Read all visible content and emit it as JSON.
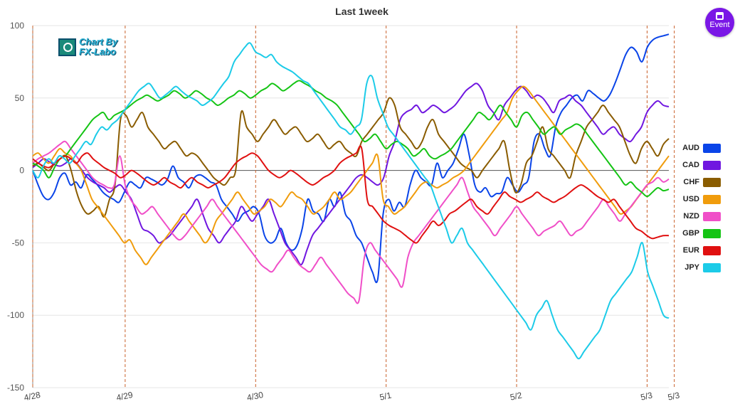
{
  "title": "Last 1week",
  "event_button": {
    "label": "Event",
    "icon": "calendar-icon",
    "color": "#7a17e6"
  },
  "logo": {
    "line1": "Chart By",
    "line2": "FX-Labo"
  },
  "chart_data": {
    "type": "line",
    "title": "Last 1week",
    "ylim": [
      -150,
      100
    ],
    "yticks": [
      100,
      50,
      0,
      -50,
      -100,
      -150
    ],
    "xlim": [
      0,
      117
    ],
    "xticks": [
      {
        "x": 0,
        "label": "4/28"
      },
      {
        "x": 17,
        "label": "4/29"
      },
      {
        "x": 41,
        "label": "4/30"
      },
      {
        "x": 65,
        "label": "5/1"
      },
      {
        "x": 89,
        "label": "5/2"
      },
      {
        "x": 113,
        "label": "5/3"
      },
      {
        "x": 118,
        "label": "5/3"
      }
    ],
    "grid": true,
    "legend": "right",
    "series": [
      {
        "name": "AUD",
        "color": "#0a44e8",
        "values": [
          0,
          -10,
          -18,
          -20,
          -15,
          -5,
          -2,
          -10,
          -8,
          -12,
          -3,
          -6,
          -10,
          -15,
          -18,
          -20,
          -22,
          -15,
          -8,
          -10,
          -12,
          -5,
          -6,
          -8,
          -10,
          -6,
          3,
          -5,
          -8,
          -12,
          -5,
          -3,
          -5,
          -8,
          -10,
          -20,
          -25,
          -30,
          -35,
          -30,
          -28,
          -25,
          -30,
          -45,
          -50,
          -48,
          -40,
          -50,
          -55,
          -52,
          -40,
          -20,
          -28,
          -30,
          -35,
          -20,
          -25,
          -15,
          -30,
          -35,
          -45,
          -50,
          -60,
          -70,
          -75,
          -30,
          -20,
          -28,
          -22,
          -25,
          -10,
          0,
          -5,
          -8,
          -10,
          5,
          -5,
          0,
          5,
          15,
          25,
          10,
          -10,
          -15,
          -12,
          -18,
          -16,
          -15,
          -5,
          -10,
          -15,
          -10,
          -5,
          20,
          25,
          15,
          10,
          30,
          40,
          45,
          50,
          52,
          48,
          55,
          53,
          50,
          48,
          52,
          60,
          70,
          80,
          85,
          82,
          75,
          85,
          90,
          92,
          93,
          94
        ]
      },
      {
        "name": "CAD",
        "color": "#7017e0",
        "values": [
          2,
          5,
          8,
          6,
          4,
          3,
          5,
          8,
          5,
          0,
          -5,
          -8,
          -10,
          -12,
          -15,
          -12,
          -10,
          -15,
          -20,
          -30,
          -40,
          -42,
          -45,
          -50,
          -48,
          -45,
          -40,
          -35,
          -30,
          -25,
          -20,
          -30,
          -40,
          -45,
          -50,
          -45,
          -40,
          -35,
          -25,
          -30,
          -35,
          -30,
          -25,
          -20,
          -30,
          -40,
          -50,
          -55,
          -60,
          -65,
          -55,
          -45,
          -40,
          -35,
          -30,
          -25,
          -20,
          -15,
          -10,
          -5,
          -3,
          -5,
          -8,
          -10,
          -5,
          10,
          20,
          35,
          40,
          42,
          45,
          40,
          42,
          45,
          43,
          40,
          42,
          45,
          50,
          55,
          58,
          60,
          55,
          45,
          40,
          35,
          45,
          50,
          55,
          58,
          55,
          50,
          52,
          50,
          45,
          40,
          48,
          50,
          52,
          48,
          45,
          40,
          35,
          30,
          25,
          28,
          30,
          25,
          22,
          20,
          25,
          30,
          40,
          45,
          48,
          45,
          44
        ]
      },
      {
        "name": "CHF",
        "color": "#8a5c00",
        "values": [
          3,
          5,
          2,
          0,
          5,
          8,
          10,
          0,
          -15,
          -25,
          -30,
          -28,
          -25,
          -32,
          -20,
          -10,
          35,
          38,
          30,
          35,
          40,
          30,
          25,
          20,
          15,
          18,
          20,
          15,
          10,
          12,
          10,
          5,
          0,
          -5,
          -8,
          -10,
          -5,
          0,
          40,
          30,
          25,
          20,
          25,
          30,
          35,
          30,
          25,
          28,
          30,
          25,
          20,
          22,
          25,
          20,
          15,
          18,
          20,
          15,
          12,
          10,
          20,
          25,
          30,
          35,
          40,
          50,
          45,
          30,
          25,
          20,
          15,
          20,
          30,
          35,
          25,
          20,
          15,
          10,
          5,
          2,
          0,
          -5,
          0,
          5,
          10,
          15,
          20,
          0,
          -15,
          -10,
          5,
          10,
          20,
          30,
          15,
          10,
          5,
          0,
          -5,
          10,
          20,
          30,
          35,
          40,
          45,
          40,
          35,
          30,
          20,
          10,
          5,
          15,
          20,
          15,
          10,
          18,
          22
        ]
      },
      {
        "name": "USD",
        "color": "#f09c0c",
        "values": [
          10,
          12,
          8,
          5,
          10,
          15,
          12,
          10,
          5,
          0,
          -10,
          -20,
          -25,
          -30,
          -35,
          -40,
          -45,
          -50,
          -48,
          -55,
          -60,
          -65,
          -60,
          -55,
          -50,
          -45,
          -40,
          -35,
          -30,
          -35,
          -40,
          -45,
          -50,
          -45,
          -35,
          -30,
          -25,
          -20,
          -15,
          -20,
          -25,
          -30,
          -28,
          -25,
          -20,
          -22,
          -25,
          -20,
          -15,
          -18,
          -20,
          -25,
          -30,
          -28,
          -25,
          -20,
          -15,
          -20,
          -18,
          -15,
          -10,
          -5,
          0,
          5,
          10,
          -20,
          -25,
          -30,
          -28,
          -25,
          -20,
          -15,
          -10,
          -8,
          -10,
          -12,
          -10,
          -8,
          -5,
          -3,
          0,
          5,
          10,
          15,
          20,
          25,
          30,
          35,
          40,
          50,
          55,
          58,
          55,
          50,
          45,
          40,
          35,
          30,
          25,
          20,
          15,
          10,
          5,
          0,
          -5,
          -10,
          -15,
          -20,
          -25,
          -30,
          -28,
          -25,
          -20,
          -15,
          -10,
          -5,
          0,
          5,
          10
        ]
      },
      {
        "name": "NZD",
        "color": "#f04fc8",
        "values": [
          5,
          8,
          10,
          12,
          15,
          18,
          20,
          15,
          10,
          5,
          0,
          -5,
          -8,
          -10,
          -12,
          -10,
          10,
          -10,
          -20,
          -25,
          -30,
          -28,
          -25,
          -30,
          -35,
          -40,
          -45,
          -48,
          -45,
          -40,
          -35,
          -30,
          -25,
          -20,
          -25,
          -30,
          -35,
          -40,
          -45,
          -50,
          -55,
          -60,
          -65,
          -68,
          -70,
          -65,
          -60,
          -55,
          -60,
          -65,
          -68,
          -70,
          -65,
          -60,
          -65,
          -70,
          -75,
          -80,
          -85,
          -88,
          -90,
          -60,
          -50,
          -55,
          -60,
          -65,
          -70,
          -75,
          -80,
          -60,
          -50,
          -45,
          -40,
          -35,
          -30,
          -25,
          -20,
          -15,
          -10,
          -5,
          -15,
          -25,
          -30,
          -35,
          -40,
          -45,
          -40,
          -35,
          -30,
          -25,
          -30,
          -35,
          -40,
          -45,
          -42,
          -40,
          -38,
          -35,
          -40,
          -45,
          -42,
          -40,
          -35,
          -30,
          -25,
          -20,
          -25,
          -30,
          -35,
          -30,
          -25,
          -20,
          -15,
          -10,
          -8,
          -5,
          -8,
          -6
        ]
      },
      {
        "name": "GBP",
        "color": "#14c414",
        "values": [
          5,
          3,
          0,
          -5,
          2,
          8,
          10,
          15,
          20,
          25,
          30,
          35,
          38,
          40,
          35,
          38,
          40,
          42,
          45,
          48,
          50,
          52,
          50,
          48,
          50,
          52,
          55,
          53,
          50,
          52,
          55,
          53,
          50,
          48,
          45,
          47,
          50,
          52,
          55,
          53,
          50,
          52,
          55,
          57,
          60,
          58,
          55,
          57,
          60,
          62,
          60,
          58,
          55,
          53,
          50,
          48,
          45,
          40,
          35,
          30,
          25,
          20,
          22,
          25,
          20,
          15,
          18,
          20,
          18,
          15,
          10,
          12,
          15,
          10,
          8,
          10,
          12,
          15,
          20,
          25,
          30,
          35,
          40,
          38,
          35,
          40,
          45,
          40,
          35,
          30,
          38,
          40,
          35,
          30,
          25,
          28,
          30,
          25,
          28,
          30,
          32,
          30,
          25,
          20,
          15,
          10,
          5,
          0,
          -5,
          -10,
          -8,
          -12,
          -15,
          -18,
          -15,
          -12,
          -14,
          -13
        ]
      },
      {
        "name": "EUR",
        "color": "#e01010",
        "values": [
          8,
          5,
          3,
          2,
          5,
          8,
          10,
          8,
          5,
          10,
          12,
          8,
          5,
          2,
          0,
          -2,
          -5,
          -3,
          0,
          -2,
          -5,
          -8,
          -10,
          -8,
          -5,
          -8,
          -10,
          -12,
          -8,
          -5,
          -8,
          -10,
          -12,
          -10,
          -8,
          -5,
          0,
          5,
          8,
          10,
          12,
          10,
          5,
          0,
          -3,
          -5,
          -3,
          0,
          -2,
          -5,
          -8,
          -10,
          -8,
          -5,
          -3,
          0,
          5,
          8,
          10,
          12,
          15,
          -20,
          -25,
          -30,
          -35,
          -38,
          -40,
          -42,
          -45,
          -48,
          -50,
          -45,
          -40,
          -35,
          -38,
          -35,
          -30,
          -28,
          -25,
          -22,
          -20,
          -25,
          -28,
          -30,
          -25,
          -20,
          -15,
          -18,
          -20,
          -22,
          -20,
          -18,
          -15,
          -18,
          -20,
          -22,
          -20,
          -18,
          -15,
          -12,
          -10,
          -12,
          -15,
          -18,
          -20,
          -22,
          -20,
          -25,
          -30,
          -35,
          -40,
          -42,
          -45,
          -47,
          -46,
          -45,
          -45
        ]
      },
      {
        "name": "JPY",
        "color": "#1ccbe8",
        "values": [
          0,
          -5,
          3,
          8,
          5,
          10,
          8,
          5,
          10,
          15,
          20,
          18,
          25,
          30,
          28,
          32,
          35,
          40,
          45,
          50,
          55,
          58,
          60,
          55,
          50,
          52,
          55,
          58,
          55,
          52,
          50,
          48,
          45,
          47,
          50,
          55,
          60,
          65,
          75,
          80,
          85,
          88,
          82,
          80,
          78,
          80,
          75,
          72,
          70,
          68,
          65,
          62,
          60,
          55,
          50,
          45,
          40,
          35,
          30,
          28,
          25,
          30,
          35,
          60,
          65,
          50,
          40,
          30,
          25,
          20,
          15,
          10,
          5,
          0,
          -5,
          -10,
          -20,
          -30,
          -40,
          -50,
          -45,
          -40,
          -50,
          -55,
          -60,
          -65,
          -70,
          -75,
          -80,
          -85,
          -90,
          -95,
          -100,
          -105,
          -110,
          -100,
          -95,
          -90,
          -100,
          -110,
          -115,
          -120,
          -125,
          -130,
          -125,
          -120,
          -115,
          -110,
          -100,
          -90,
          -85,
          -80,
          -75,
          -70,
          -60,
          -50,
          -70,
          -80,
          -90,
          -100,
          -102
        ]
      }
    ]
  }
}
